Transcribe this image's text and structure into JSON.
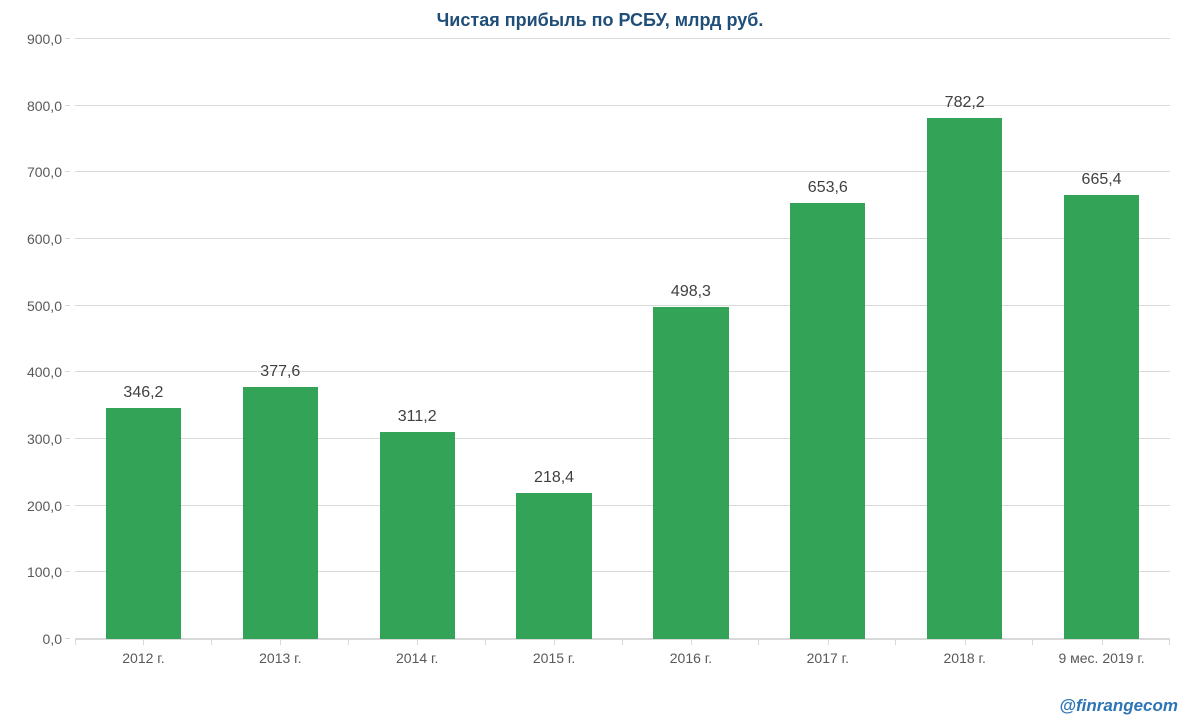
{
  "chart": {
    "type": "bar",
    "title": "Чистая прибыль по РСБУ, млрд руб.",
    "title_fontsize": 18,
    "title_color": "#1f4e79",
    "categories": [
      "2012 г.",
      "2013 г.",
      "2014 г.",
      "2015 г.",
      "2016 г.",
      "2017 г.",
      "2018 г.",
      "9 мес. 2019 г."
    ],
    "values": [
      346.2,
      377.6,
      311.2,
      218.4,
      498.3,
      653.6,
      782.2,
      665.4
    ],
    "value_labels": [
      "346,2",
      "377,6",
      "311,2",
      "218,4",
      "498,3",
      "653,6",
      "782,2",
      "665,4"
    ],
    "bar_color": "#33a357",
    "bar_width_ratio": 0.55,
    "ylim": [
      0,
      900
    ],
    "ytick_step": 100,
    "ytick_labels": [
      "0,0",
      "100,0",
      "200,0",
      "300,0",
      "400,0",
      "500,0",
      "600,0",
      "700,0",
      "800,0",
      "900,0"
    ],
    "gridline_color": "#d9d9d9",
    "background_color": "#ffffff",
    "axis_label_color": "#595959",
    "axis_label_fontsize": 14,
    "value_label_fontsize": 16,
    "value_label_color": "#404040"
  },
  "watermark": {
    "text": "@finrangecom",
    "color": "#2e75b6",
    "fontsize": 17
  }
}
